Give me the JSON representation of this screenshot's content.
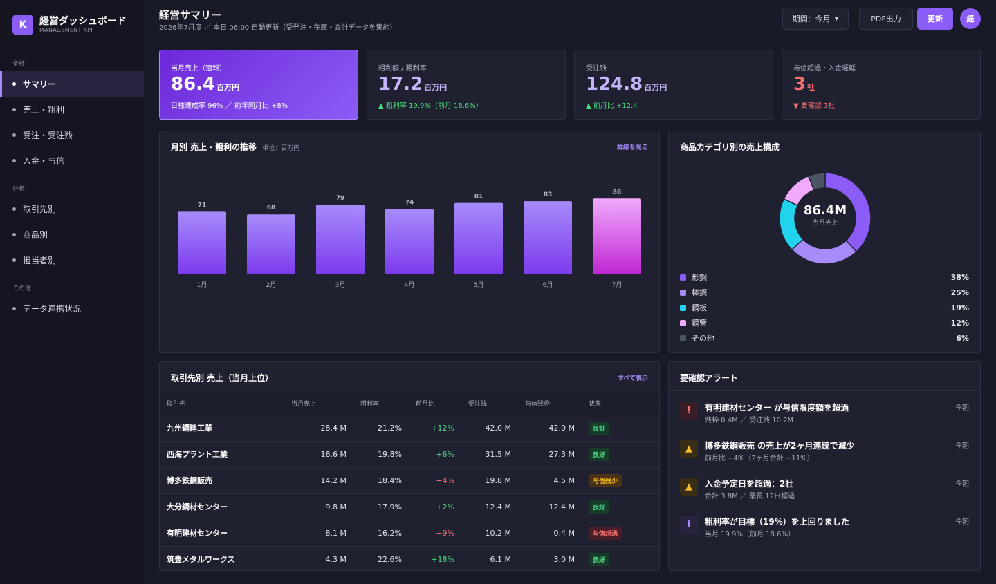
{
  "app": {
    "logo_letter": "K",
    "title": "経営ダッシュボード",
    "subtitle": "MANAGEMENT KPI"
  },
  "sidebar": {
    "sections": [
      "全社",
      "分析",
      "その他"
    ],
    "items": [
      {
        "label": "サマリー"
      },
      {
        "label": "売上・粗利"
      },
      {
        "label": "受注・受注残"
      },
      {
        "label": "入金・与信"
      },
      {
        "label": "取引先別"
      },
      {
        "label": "商品別"
      },
      {
        "label": "担当者別"
      },
      {
        "label": "データ連携状況"
      }
    ]
  },
  "header": {
    "title": "経営サマリー",
    "subtitle": "2026年7月度 ／ 本日 06:00 自動更新（受発注・在庫・会計データを集約）",
    "period_button": "期間：今月",
    "pdf_button": "PDF出力",
    "refresh_button": "更新",
    "avatar": "経"
  },
  "kpis": [
    {
      "label": "当月売上（速報）",
      "value": "86.4",
      "unit": "百万円",
      "note": "目標達成率 96% ／ 前年同月比 +8%"
    },
    {
      "label": "粗利額 / 粗利率",
      "value": "17.2",
      "unit": "百万円",
      "note": "▲ 粗利率 19.9%（前月 18.6%）"
    },
    {
      "label": "受注残",
      "value": "124.8",
      "unit": "百万円",
      "note": "▲ 前月比 +12.4"
    },
    {
      "label": "与信超過・入金遅延",
      "value": "3",
      "unit": "社",
      "note": "▼ 要確認 3社"
    }
  ],
  "sales_chart": {
    "title": "月別 売上・粗利の推移",
    "unit": "単位：百万円",
    "link": "詳細を見る"
  },
  "chart_data": [
    {
      "type": "bar",
      "title": "月別 売上・粗利の推移",
      "categories": [
        "1月",
        "2月",
        "3月",
        "4月",
        "5月",
        "6月",
        "7月"
      ],
      "values": [
        71,
        68,
        79,
        74,
        81,
        83,
        86
      ],
      "ylim": [
        0,
        100
      ],
      "highlight_color": "#e879f9",
      "bar_color": "#8b5cf6"
    },
    {
      "type": "pie",
      "title": "商品カテゴリ別の売上構成",
      "center_value": "86.4M",
      "center_label": "当月売上",
      "slices": [
        {
          "name": "形鋼",
          "value": 38,
          "color": "#8b5cf6"
        },
        {
          "name": "棒鋼",
          "value": 25,
          "color": "#a78bfa"
        },
        {
          "name": "鋼板",
          "value": 19,
          "color": "#22d3ee"
        },
        {
          "name": "鋼管",
          "value": 12,
          "color": "#f0abfc"
        },
        {
          "name": "その他",
          "value": 6,
          "color": "#4b5563"
        }
      ]
    }
  ],
  "category_panel": {
    "title": "商品カテゴリ別の売上構成",
    "legend": [
      {
        "name": "形鋼",
        "pct": "38%",
        "color": "#8b5cf6"
      },
      {
        "name": "棒鋼",
        "pct": "25%",
        "color": "#a78bfa"
      },
      {
        "name": "鋼板",
        "pct": "19%",
        "color": "#22d3ee"
      },
      {
        "name": "鋼管",
        "pct": "12%",
        "color": "#f0abfc"
      },
      {
        "name": "その他",
        "pct": "6%",
        "color": "#4b5563"
      }
    ]
  },
  "customers": {
    "title": "取引先別 売上（当月上位）",
    "link": "すべて表示",
    "columns": [
      "取引先",
      "当月売上",
      "粗利率",
      "前月比",
      "受注残",
      "与信残枠",
      "状態"
    ],
    "rows": [
      {
        "name": "九州鋼建工業",
        "sales": "28.4 M",
        "margin": "21.2%",
        "mom": "+12%",
        "backlog": "42.0 M",
        "credit": "42.0 M",
        "status": "良好",
        "status_type": "good"
      },
      {
        "name": "西海プラント工業",
        "sales": "18.6 M",
        "margin": "19.8%",
        "mom": "+6%",
        "backlog": "31.5 M",
        "credit": "27.3 M",
        "status": "良好",
        "status_type": "good"
      },
      {
        "name": "博多鉄鋼販売",
        "sales": "14.2 M",
        "margin": "18.4%",
        "mom": "−4%",
        "backlog": "19.8 M",
        "credit": "4.5 M",
        "status": "与信残少",
        "status_type": "warn"
      },
      {
        "name": "大分鋼材センター",
        "sales": "9.8 M",
        "margin": "17.9%",
        "mom": "+2%",
        "backlog": "12.4 M",
        "credit": "12.4 M",
        "status": "良好",
        "status_type": "good"
      },
      {
        "name": "有明建材センター",
        "sales": "8.1 M",
        "margin": "16.2%",
        "mom": "−9%",
        "backlog": "10.2 M",
        "credit": "0.4 M",
        "status": "与信超過",
        "status_type": "bad"
      },
      {
        "name": "筑豊メタルワークス",
        "sales": "4.3 M",
        "margin": "22.6%",
        "mom": "+18%",
        "backlog": "6.1 M",
        "credit": "3.0 M",
        "status": "良好",
        "status_type": "good"
      }
    ]
  },
  "alerts": {
    "title": "要確認アラート",
    "items": [
      {
        "icon": "!",
        "type": "red",
        "title": "有明建材センター が与信限度額を超過",
        "sub": "残枠 0.4M ／ 受注残 10.2M",
        "time": "今朝"
      },
      {
        "icon": "▲",
        "type": "amber",
        "title": "博多鉄鋼販売 の売上が2ヶ月連続で減少",
        "sub": "前月比 −4%（2ヶ月合計 −11%）",
        "time": "今朝"
      },
      {
        "icon": "▲",
        "type": "amber",
        "title": "入金予定日を超過：2社",
        "sub": "合計 3.8M ／ 最長 12日超過",
        "time": "今朝"
      },
      {
        "icon": "i",
        "type": "purple",
        "title": "粗利率が目標（19%）を上回りました",
        "sub": "当月 19.9%（前月 18.6%）",
        "time": "今朝"
      }
    ]
  }
}
